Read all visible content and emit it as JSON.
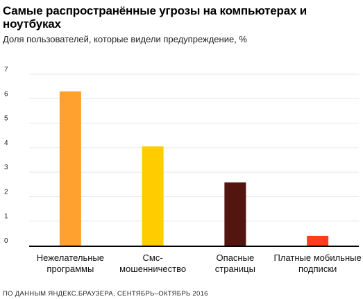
{
  "title": "Самые распространённые угрозы на компьютерах и ноутбуках",
  "subtitle": "Доля пользователей, которые видели предупреждение, %",
  "source": "ПО ДАННЫМ ЯНДЕКС.БРАУЗЕРА, СЕНТЯБРЬ–ОКТЯБРЬ 2016",
  "chart_data": {
    "type": "bar",
    "title": "Самые распространённые угрозы на компьютерах и ноутбуках",
    "subtitle": "Доля пользователей, которые видели предупреждение, %",
    "xlabel": "",
    "ylabel": "",
    "ylim": [
      0,
      7
    ],
    "yticks": [
      "0",
      "1",
      "2",
      "3",
      "4",
      "5",
      "6",
      "7"
    ],
    "grid": true,
    "legend": "none",
    "categories": [
      [
        "Нежелательные",
        "программы"
      ],
      [
        "Смс-",
        "мошенничество"
      ],
      [
        "Опасные",
        "страницы"
      ],
      [
        "Платные мобильные",
        "подписки"
      ]
    ],
    "values": [
      6.3,
      4.05,
      2.58,
      0.4
    ],
    "colors": [
      "#ffa12e",
      "#ffcc00",
      "#52150f",
      "#ff3d1f"
    ],
    "gridColor": "#e6e6e6",
    "axisColor": "#000000"
  }
}
